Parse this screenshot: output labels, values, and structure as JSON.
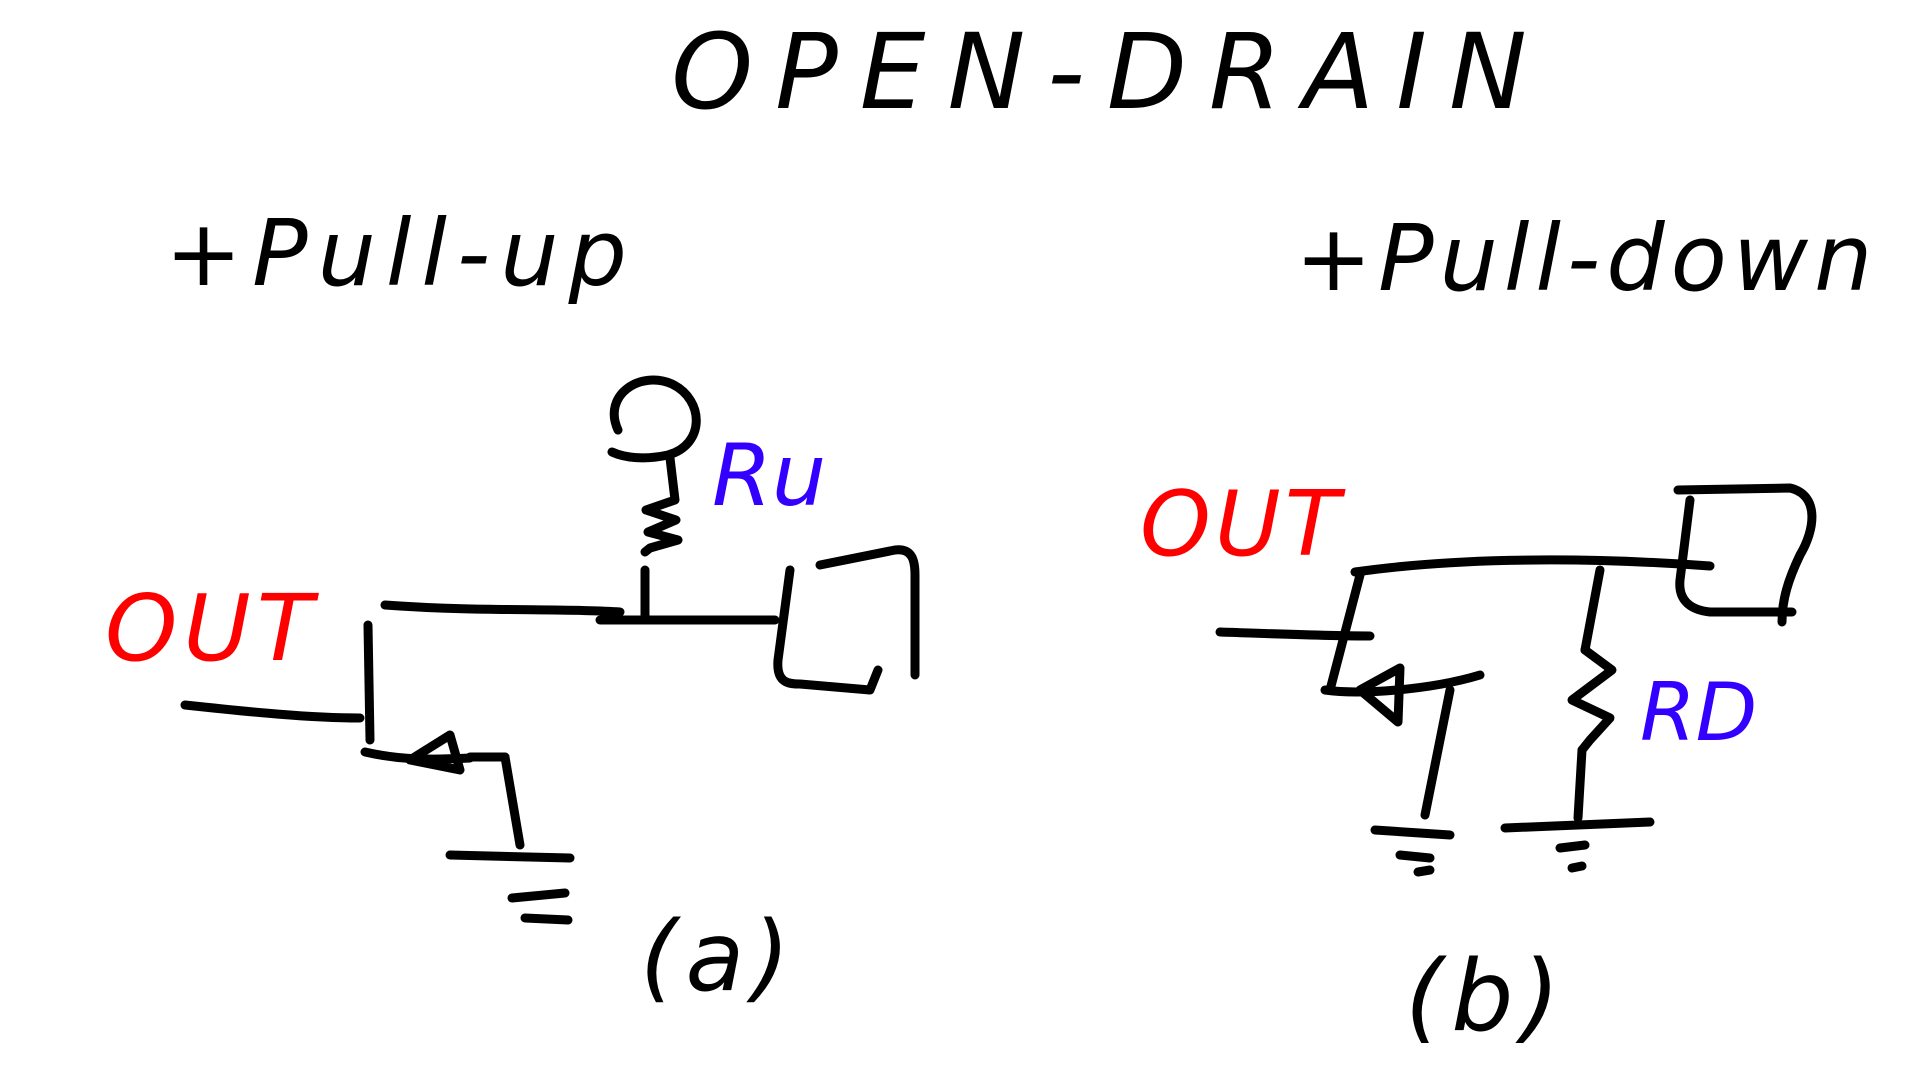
{
  "title": "OPEN-DRAIN",
  "left": {
    "heading": "+Pull-up",
    "out_label": "OUT",
    "resistor_label": "Ru",
    "caption": "(a)"
  },
  "right": {
    "heading": "+Pull-down",
    "out_label": "OUT",
    "resistor_label": "RD",
    "caption": "(b)"
  },
  "colors": {
    "ink": "#000000",
    "out_label": "#ff0000",
    "resistor_label": "#3300ff"
  }
}
